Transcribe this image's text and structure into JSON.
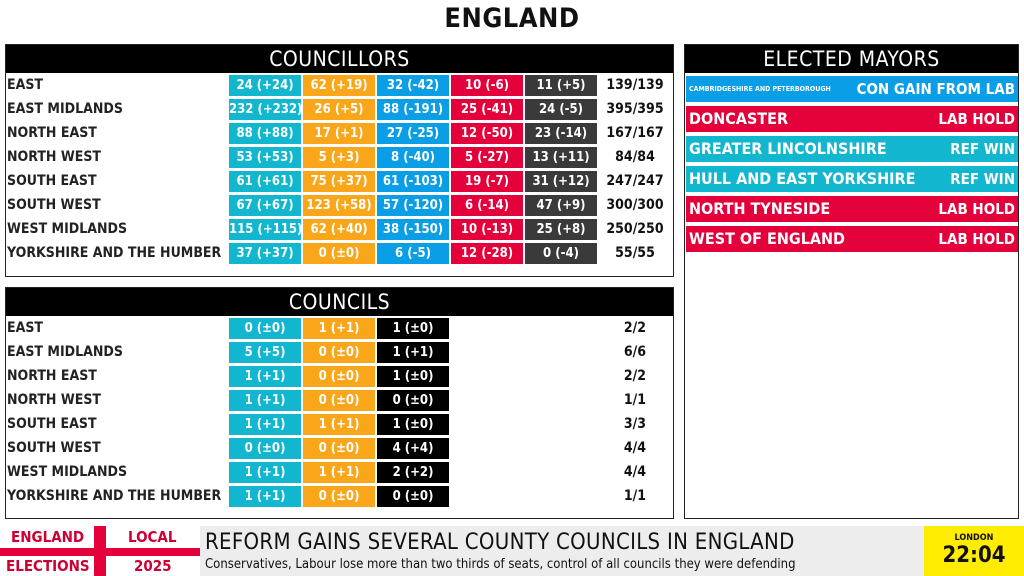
{
  "title": "ENGLAND",
  "colors": {
    "reform": "#12b6cf",
    "liberal_democrat": "#faa61a",
    "conservative": "#0a9ee6",
    "labour": "#e4003b",
    "others": "#3a3a3a",
    "ticker_clock": "#ffec00"
  },
  "councillors": {
    "heading": "COUNCILLORS",
    "rows": [
      {
        "region": "EAST",
        "cells": [
          "24 (+24)",
          "62 (+19)",
          "32 (-42)",
          "10 (-6)",
          "11 (+5)"
        ],
        "total": "139/139"
      },
      {
        "region": "EAST MIDLANDS",
        "cells": [
          "232 (+232)",
          "26 (+5)",
          "88 (-191)",
          "25 (-41)",
          "24 (-5)"
        ],
        "total": "395/395"
      },
      {
        "region": "NORTH EAST",
        "cells": [
          "88 (+88)",
          "17 (+1)",
          "27 (-25)",
          "12 (-50)",
          "23 (-14)"
        ],
        "total": "167/167"
      },
      {
        "region": "NORTH WEST",
        "cells": [
          "53 (+53)",
          "5 (+3)",
          "8 (-40)",
          "5 (-27)",
          "13 (+11)"
        ],
        "total": "84/84"
      },
      {
        "region": "SOUTH EAST",
        "cells": [
          "61 (+61)",
          "75 (+37)",
          "61 (-103)",
          "19 (-7)",
          "31 (+12)"
        ],
        "total": "247/247"
      },
      {
        "region": "SOUTH WEST",
        "cells": [
          "67 (+67)",
          "123 (+58)",
          "57 (-120)",
          "6 (-14)",
          "47 (+9)"
        ],
        "total": "300/300"
      },
      {
        "region": "WEST MIDLANDS",
        "cells": [
          "115 (+115)",
          "62 (+40)",
          "38 (-150)",
          "10 (-13)",
          "25 (+8)"
        ],
        "total": "250/250"
      },
      {
        "region": "YORKSHIRE AND THE HUMBER",
        "cells": [
          "37 (+37)",
          "0 (±0)",
          "6 (-5)",
          "12 (-28)",
          "0 (-4)"
        ],
        "total": "55/55"
      }
    ]
  },
  "councils": {
    "heading": "COUNCILS",
    "rows": [
      {
        "region": "EAST",
        "cells": [
          "0 (±0)",
          "1 (+1)",
          "1 (±0)"
        ],
        "total": "2/2"
      },
      {
        "region": "EAST MIDLANDS",
        "cells": [
          "5 (+5)",
          "0 (±0)",
          "1 (+1)"
        ],
        "total": "6/6"
      },
      {
        "region": "NORTH EAST",
        "cells": [
          "1 (+1)",
          "0 (±0)",
          "1 (±0)"
        ],
        "total": "2/2"
      },
      {
        "region": "NORTH WEST",
        "cells": [
          "1 (+1)",
          "0 (±0)",
          "0 (±0)"
        ],
        "total": "1/1"
      },
      {
        "region": "SOUTH EAST",
        "cells": [
          "1 (+1)",
          "1 (+1)",
          "1 (±0)"
        ],
        "total": "3/3"
      },
      {
        "region": "SOUTH WEST",
        "cells": [
          "0 (±0)",
          "0 (±0)",
          "4 (+4)"
        ],
        "total": "4/4"
      },
      {
        "region": "WEST MIDLANDS",
        "cells": [
          "1 (+1)",
          "1 (+1)",
          "2 (+2)"
        ],
        "total": "4/4"
      },
      {
        "region": "YORKSHIRE AND THE HUMBER",
        "cells": [
          "1 (+1)",
          "0 (±0)",
          "0 (±0)"
        ],
        "total": "1/1"
      }
    ]
  },
  "mayors": {
    "heading": "ELECTED MAYORS",
    "items": [
      {
        "name": "CAMBRIDGESHIRE AND PETERBOROUGH",
        "result": "CON GAIN FROM LAB",
        "color": "#0a9ee6"
      },
      {
        "name": "DONCASTER",
        "result": "LAB HOLD",
        "color": "#e4003b"
      },
      {
        "name": "GREATER LINCOLNSHIRE",
        "result": "REF WIN",
        "color": "#12b6cf"
      },
      {
        "name": "HULL AND EAST YORKSHIRE",
        "result": "REF WIN",
        "color": "#12b6cf"
      },
      {
        "name": "NORTH TYNESIDE",
        "result": "LAB HOLD",
        "color": "#e4003b"
      },
      {
        "name": "WEST OF ENGLAND",
        "result": "LAB HOLD",
        "color": "#e4003b"
      }
    ]
  },
  "ticker": {
    "flag": {
      "tl": "ENGLAND",
      "tr": "LOCAL",
      "bl": "ELECTIONS",
      "br": "2025"
    },
    "headline": "REFORM GAINS SEVERAL COUNTY COUNCILS IN ENGLAND",
    "subline": "Conservatives, Labour lose more than two thirds of seats, control of all councils they were defending",
    "clock_city": "LONDON",
    "clock_time": "22:04"
  }
}
